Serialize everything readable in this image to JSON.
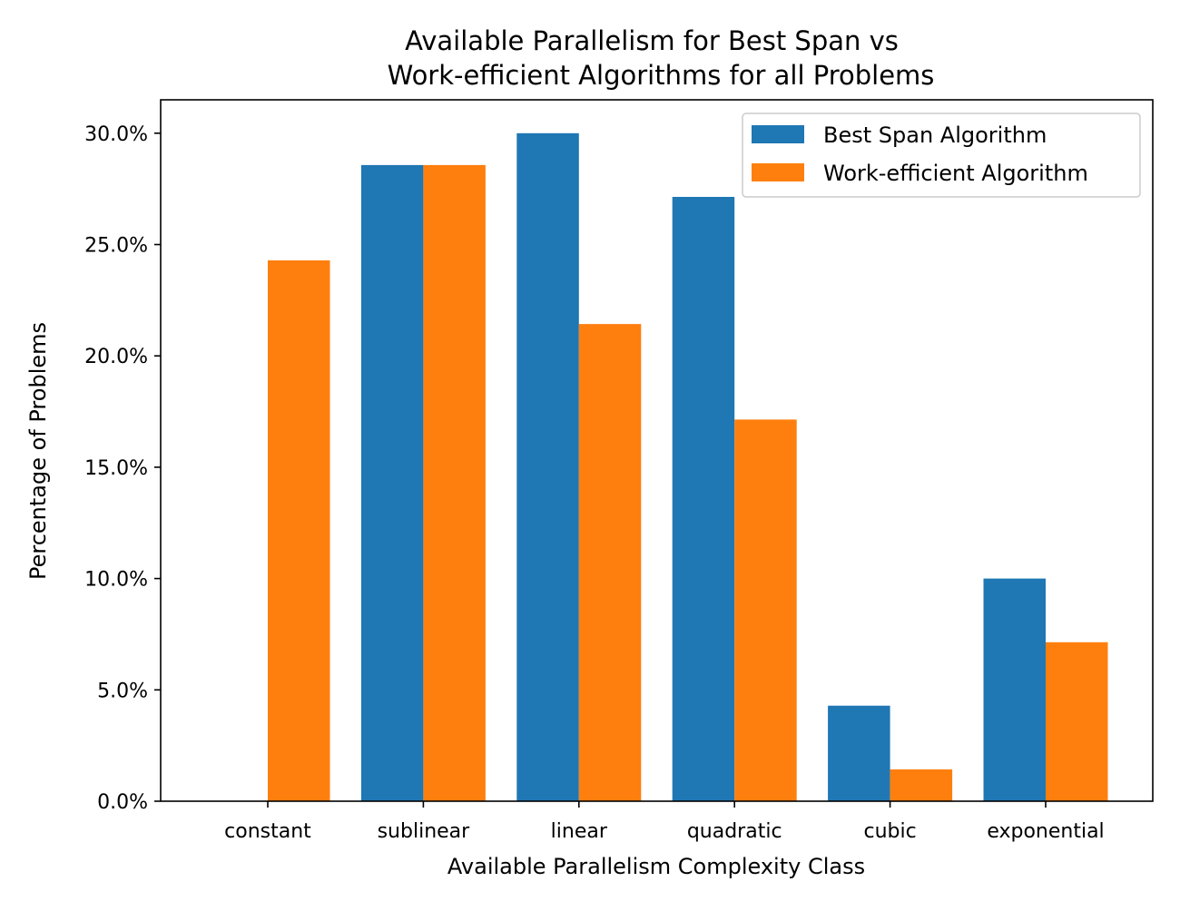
{
  "chart_data": {
    "type": "bar",
    "title": "Available Parallelism for Best Span vs\nWork-efficient Algorithms for all Problems",
    "title_lines": [
      "Available Parallelism for Best Span vs",
      "Work-efficient Algorithms for all Problems"
    ],
    "xlabel": "Available Parallelism Complexity Class",
    "ylabel": "Percentage of Problems",
    "categories": [
      "constant",
      "sublinear",
      "linear",
      "quadratic",
      "cubic",
      "exponential"
    ],
    "series": [
      {
        "name": "Best Span Algorithm",
        "color": "#1f77b4",
        "values": [
          0.0,
          28.57,
          30.0,
          27.14,
          4.29,
          10.0
        ]
      },
      {
        "name": "Work-efficient Algorithm",
        "color": "#ff7f0e",
        "values": [
          24.29,
          28.57,
          21.43,
          17.14,
          1.43,
          7.14
        ]
      }
    ],
    "ylim": [
      0,
      31.5
    ],
    "yticks": [
      0,
      5,
      10,
      15,
      20,
      25,
      30
    ],
    "ytick_labels": [
      "0.0%",
      "5.0%",
      "10.0%",
      "15.0%",
      "20.0%",
      "25.0%",
      "30.0%"
    ],
    "legend_position": "top-right",
    "grid": false
  }
}
